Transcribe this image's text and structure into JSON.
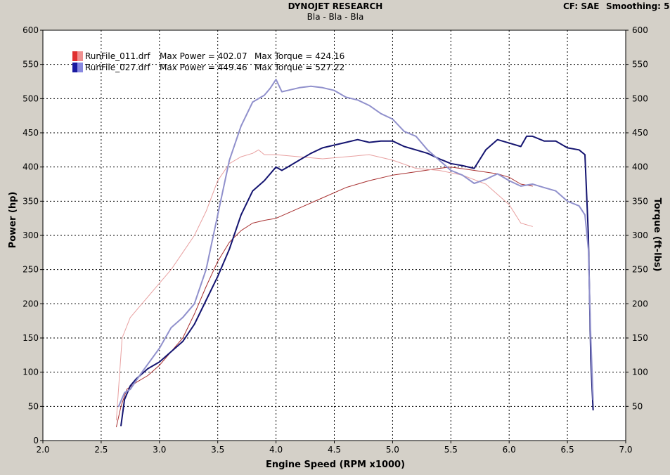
{
  "header": {
    "title": "DYNOJET RESEARCH",
    "subtitle": "Bla - Bla - Bla",
    "cf": "CF: SAE",
    "smoothing": "Smoothing: 5"
  },
  "chart_data": {
    "type": "line",
    "title": "DYNOJET RESEARCH",
    "subtitle": "Bla - Bla - Bla",
    "xlabel": "Engine Speed (RPM x1000)",
    "ylabel": "Power (hp)",
    "ylabel_right": "Torque (ft-lbs)",
    "xlim": [
      2.0,
      7.0
    ],
    "ylim": [
      0,
      600
    ],
    "ylim_right": [
      0,
      600
    ],
    "x_ticks": [
      "2.0",
      "2.5",
      "3.0",
      "3.5",
      "4.0",
      "4.5",
      "5.0",
      "5.5",
      "6.0",
      "6.5",
      "7.0"
    ],
    "y_ticks": [
      "0",
      "50",
      "100",
      "150",
      "200",
      "250",
      "300",
      "350",
      "400",
      "450",
      "500",
      "550",
      "600"
    ],
    "y_ticks_right": [
      "50",
      "100",
      "150",
      "200",
      "250",
      "300",
      "350",
      "400",
      "450",
      "500",
      "550",
      "600"
    ],
    "grid": true,
    "legend_position": "top-left",
    "legend": [
      {
        "file": "RunFile_011.drf",
        "power": "Max Power = 402.07",
        "torque": "Max Torque = 424.16",
        "colors": [
          "#e03030",
          "#f09090"
        ]
      },
      {
        "file": "RunFile_027.drf",
        "power": "Max Power = 449.46",
        "torque": "Max Torque = 527.22",
        "colors": [
          "#1a1aa0",
          "#8888e0"
        ]
      }
    ],
    "series": [
      {
        "legend_index": 0,
        "quantity": "power",
        "color": "#a83030",
        "width": 1,
        "x": [
          2.63,
          2.67,
          2.72,
          2.8,
          2.9,
          3.0,
          3.1,
          3.2,
          3.3,
          3.4,
          3.5,
          3.6,
          3.7,
          3.8,
          3.9,
          4.0,
          4.2,
          4.4,
          4.6,
          4.8,
          5.0,
          5.2,
          5.4,
          5.5,
          5.7,
          5.9,
          6.0,
          6.1,
          6.2
        ],
        "y": [
          20,
          50,
          75,
          85,
          95,
          110,
          130,
          150,
          185,
          225,
          262,
          290,
          307,
          318,
          322,
          325,
          340,
          355,
          370,
          380,
          388,
          393,
          398,
          400,
          395,
          390,
          385,
          375,
          372
        ]
      },
      {
        "legend_index": 0,
        "quantity": "torque",
        "color": "#e8a0a0",
        "width": 1,
        "x": [
          2.63,
          2.68,
          2.75,
          2.85,
          3.0,
          3.1,
          3.2,
          3.3,
          3.4,
          3.5,
          3.6,
          3.7,
          3.8,
          3.85,
          3.9,
          4.0,
          4.2,
          4.4,
          4.6,
          4.8,
          5.0,
          5.2,
          5.4,
          5.6,
          5.8,
          6.0,
          6.1,
          6.2
        ],
        "y": [
          30,
          150,
          180,
          200,
          230,
          250,
          275,
          300,
          335,
          380,
          405,
          415,
          420,
          425,
          418,
          418,
          415,
          412,
          415,
          418,
          410,
          398,
          395,
          388,
          375,
          345,
          318,
          313
        ]
      },
      {
        "legend_index": 1,
        "quantity": "power",
        "color": "#141470",
        "width": 2,
        "x": [
          2.67,
          2.7,
          2.75,
          2.8,
          2.9,
          3.0,
          3.1,
          3.2,
          3.3,
          3.4,
          3.5,
          3.6,
          3.7,
          3.8,
          3.9,
          4.0,
          4.05,
          4.1,
          4.2,
          4.3,
          4.4,
          4.5,
          4.6,
          4.7,
          4.8,
          4.9,
          5.0,
          5.1,
          5.2,
          5.3,
          5.4,
          5.5,
          5.6,
          5.7,
          5.8,
          5.9,
          6.0,
          6.1,
          6.15,
          6.2,
          6.3,
          6.4,
          6.5,
          6.6,
          6.65,
          6.68,
          6.7,
          6.72
        ],
        "y": [
          22,
          60,
          80,
          90,
          105,
          115,
          130,
          145,
          170,
          205,
          240,
          280,
          330,
          365,
          380,
          400,
          395,
          400,
          410,
          420,
          428,
          432,
          436,
          440,
          436,
          438,
          438,
          430,
          425,
          420,
          412,
          405,
          402,
          398,
          425,
          440,
          435,
          430,
          445,
          445,
          438,
          438,
          428,
          425,
          418,
          300,
          120,
          45
        ]
      },
      {
        "legend_index": 1,
        "quantity": "torque",
        "color": "#9090cc",
        "width": 2,
        "x": [
          2.65,
          2.7,
          2.75,
          2.85,
          3.0,
          3.1,
          3.2,
          3.3,
          3.4,
          3.5,
          3.6,
          3.7,
          3.8,
          3.9,
          3.95,
          4.0,
          4.05,
          4.1,
          4.2,
          4.3,
          4.4,
          4.5,
          4.6,
          4.7,
          4.8,
          4.9,
          5.0,
          5.1,
          5.2,
          5.3,
          5.4,
          5.5,
          5.6,
          5.7,
          5.8,
          5.9,
          6.0,
          6.1,
          6.2,
          6.3,
          6.4,
          6.5,
          6.6,
          6.65,
          6.68,
          6.7,
          6.72
        ],
        "y": [
          50,
          70,
          75,
          100,
          135,
          165,
          180,
          200,
          250,
          330,
          410,
          460,
          495,
          505,
          515,
          528,
          510,
          512,
          516,
          518,
          516,
          512,
          502,
          498,
          490,
          478,
          470,
          452,
          445,
          425,
          410,
          395,
          388,
          376,
          382,
          390,
          380,
          372,
          375,
          370,
          365,
          350,
          343,
          330,
          280,
          150,
          60
        ]
      }
    ]
  }
}
